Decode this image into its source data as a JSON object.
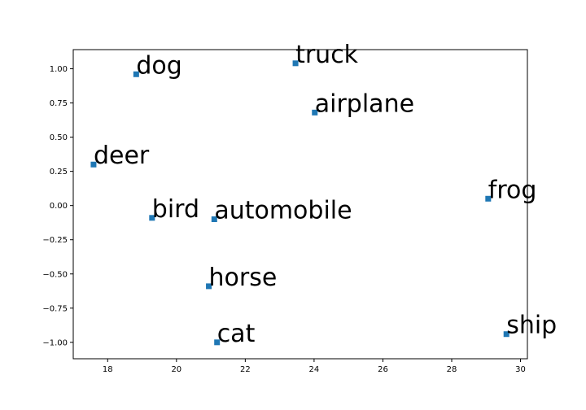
{
  "chart_data": {
    "type": "scatter",
    "title": "",
    "xlabel": "",
    "ylabel": "",
    "xlim": [
      17.0,
      30.2
    ],
    "ylim": [
      -1.12,
      1.14
    ],
    "xticks": [
      18,
      20,
      22,
      24,
      26,
      28,
      30
    ],
    "yticks": [
      -1.0,
      -0.75,
      -0.5,
      -0.25,
      0.0,
      0.25,
      0.5,
      0.75,
      1.0
    ],
    "xtick_labels": [
      "18",
      "20",
      "22",
      "24",
      "26",
      "28",
      "30"
    ],
    "ytick_labels": [
      "−1.00",
      "−0.75",
      "−0.50",
      "−0.25",
      "0.00",
      "0.25",
      "0.50",
      "0.75",
      "1.00"
    ],
    "grid": false,
    "marker": "square",
    "marker_color": "#1f77b4",
    "points": [
      {
        "label": "dog",
        "x": 18.83,
        "y": 0.96
      },
      {
        "label": "truck",
        "x": 23.46,
        "y": 1.04
      },
      {
        "label": "airplane",
        "x": 24.02,
        "y": 0.68
      },
      {
        "label": "deer",
        "x": 17.59,
        "y": 0.3
      },
      {
        "label": "frog",
        "x": 29.06,
        "y": 0.05
      },
      {
        "label": "bird",
        "x": 19.29,
        "y": -0.09
      },
      {
        "label": "automobile",
        "x": 21.1,
        "y": -0.1
      },
      {
        "label": "horse",
        "x": 20.94,
        "y": -0.59
      },
      {
        "label": "cat",
        "x": 21.18,
        "y": -1.0
      },
      {
        "label": "ship",
        "x": 29.59,
        "y": -0.94
      }
    ]
  }
}
